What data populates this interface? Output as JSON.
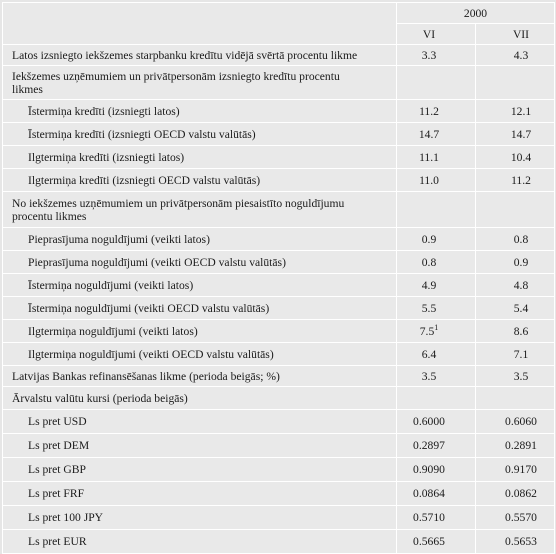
{
  "header": {
    "year": "2000",
    "months": [
      "VI",
      "VII"
    ]
  },
  "rows": [
    {
      "label": "Latos izsniegto iekšzemes starpbanku kredītu vidējā svērtā procentu likme",
      "vi": "3.3",
      "vii": "4.3"
    },
    {
      "section": "Iekšzemes uzņēmumiem un privātpersonām izsniegto kredītu procentu likmes"
    },
    {
      "label": "Īstermiņa kredīti (izsniegti latos)",
      "vi": "11.2",
      "vii": "12.1"
    },
    {
      "label": "Īstermiņa kredīti (izsniegti OECD valstu valūtās)",
      "vi": "14.7",
      "vii": "14.7"
    },
    {
      "label": "Ilgtermiņa kredīti (izsniegti latos)",
      "vi": "11.1",
      "vii": "10.4"
    },
    {
      "label": "Ilgtermiņa kredīti (izsniegti OECD valstu valūtās)",
      "vi": "11.0",
      "vii": "11.2"
    },
    {
      "section": "No iekšzemes uzņēmumiem un privātpersonām piesaistīto noguldījumu procentu likmes"
    },
    {
      "label": "Pieprasījuma noguldījumi (veikti latos)",
      "vi": "0.9",
      "vii": "0.8"
    },
    {
      "label": "Pieprasījuma noguldījumi (veikti OECD valstu valūtās)",
      "vi": "0.8",
      "vii": "0.9"
    },
    {
      "label": "Īstermiņa noguldījumi (veikti latos)",
      "vi": "4.9",
      "vii": "4.8"
    },
    {
      "label": "Īstermiņa noguldījumi (veikti OECD valstu valūtās)",
      "vi": "5.5",
      "vii": "5.4"
    },
    {
      "label": "Ilgtermiņa noguldījumi (veikti latos)",
      "vi": "7.5",
      "vi_sup": "1",
      "vii": "8.6"
    },
    {
      "label": "Ilgtermiņa noguldījumi (veikti OECD valstu valūtās)",
      "vi": "6.4",
      "vii": "7.1"
    },
    {
      "label": "Latvijas Bankas refinansēšanas likme (perioda beigās; %)",
      "vi": "3.5",
      "vii": "3.5"
    },
    {
      "section": "Ārvalstu valūtu kursi (perioda beigās)"
    },
    {
      "label": "Ls pret USD",
      "vi": "0.6000",
      "vii": "0.6060"
    },
    {
      "label": "Ls pret DEM",
      "vi": "0.2897",
      "vii": "0.2891"
    },
    {
      "label": "Ls pret GBP",
      "vi": "0.9090",
      "vii": "0.9170"
    },
    {
      "label": "Ls pret FRF",
      "vi": "0.0864",
      "vii": "0.0862"
    },
    {
      "label": "Ls pret 100 JPY",
      "vi": "0.5710",
      "vii": "0.5570"
    },
    {
      "label": "Ls pret EUR",
      "vi": "0.5665",
      "vii": "0.5653"
    }
  ]
}
